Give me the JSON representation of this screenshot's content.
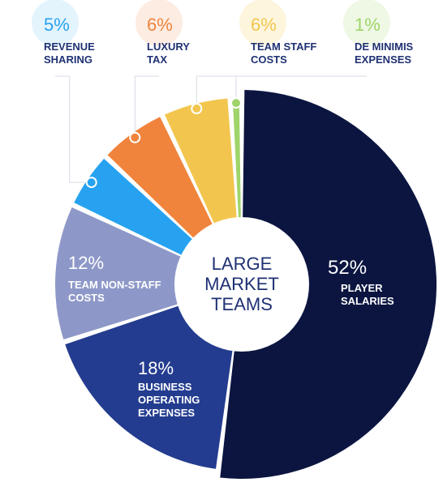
{
  "chart_data": {
    "type": "pie",
    "center_label": [
      "LARGE",
      "MARKET",
      "TEAMS"
    ],
    "slices": [
      {
        "percent_label": "52%",
        "value": 52,
        "label": [
          "PLAYER",
          "SALARIES"
        ],
        "color": "#0b1540",
        "text_color": "#ffffff",
        "label_style": "inside"
      },
      {
        "percent_label": "18%",
        "value": 18,
        "label": [
          "BUSINESS",
          "OPERATING",
          "EXPENSES"
        ],
        "color": "#233c8f",
        "text_color": "#ffffff",
        "label_style": "inside"
      },
      {
        "percent_label": "12%",
        "value": 12,
        "label": [
          "TEAM NON-STAFF",
          "COSTS"
        ],
        "color": "#8e98c8",
        "text_color": "#ffffff",
        "label_style": "inside"
      },
      {
        "percent_label": "5%",
        "value": 5,
        "label": [
          "REVENUE",
          "SHARING"
        ],
        "color": "#27a2f0",
        "text_color": "#1f3173",
        "label_style": "callout",
        "bubble_color": "#e4f4fd",
        "percent_color": "#27a2f0"
      },
      {
        "percent_label": "6%",
        "value": 6,
        "label": [
          "LUXURY",
          "TAX"
        ],
        "color": "#f0843c",
        "text_color": "#1f3173",
        "label_style": "callout",
        "bubble_color": "#fdece2",
        "percent_color": "#f0843c"
      },
      {
        "percent_label": "6%",
        "value": 6,
        "label": [
          "TEAM STAFF",
          "COSTS"
        ],
        "color": "#f2c64e",
        "text_color": "#1f3173",
        "label_style": "callout",
        "bubble_color": "#fdf5dc",
        "percent_color": "#f2c64e"
      },
      {
        "percent_label": "1%",
        "value": 1,
        "label": [
          "DE MINIMIS",
          "EXPENSES"
        ],
        "color": "#9fd46a",
        "text_color": "#1f3173",
        "label_style": "callout",
        "bubble_color": "#eef8e4",
        "percent_color": "#9fd46a"
      }
    ]
  }
}
